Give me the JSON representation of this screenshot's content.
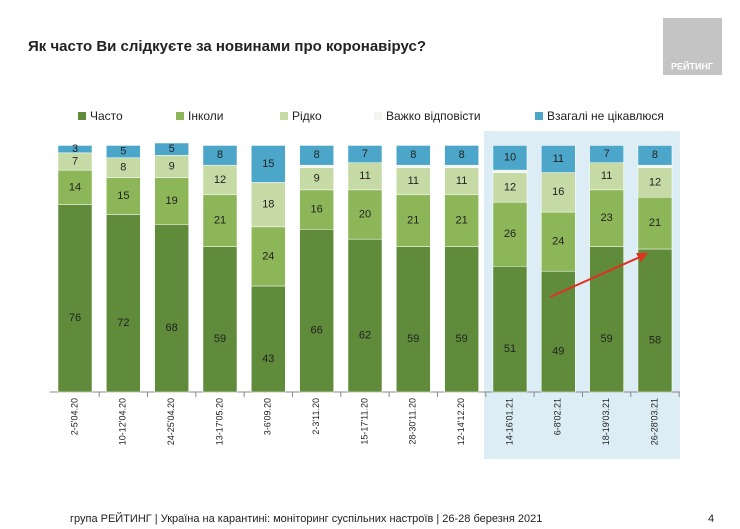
{
  "chart_data": {
    "type": "stacked-bar",
    "title": "Як часто Ви слідкуєте за новинами про коронавірус?",
    "logo": "РЕЙТИНГ",
    "footer": "група РЕЙТИНГ | Україна на карантині: моніторинг суспільних настроїв | 26-28 березня 2021",
    "page_number": "4",
    "categories": [
      "2-5'04.20",
      "10-12'04.20",
      "24-25'04.20",
      "13-17'05.20",
      "3-6'09.20",
      "2-3'11.20",
      "15-17'11.20",
      "28-30'11.20",
      "12-14'12.20",
      "14-16'01.21",
      "6-8'02.21",
      "18-19'03.21",
      "26-28'03.21"
    ],
    "series": [
      {
        "name": "Часто",
        "color": "#5f8b3b",
        "values": [
          76,
          72,
          68,
          59,
          43,
          66,
          62,
          59,
          59,
          51,
          49,
          59,
          58
        ]
      },
      {
        "name": "Інколи",
        "color": "#8db659",
        "values": [
          14,
          15,
          19,
          21,
          24,
          16,
          20,
          21,
          21,
          26,
          24,
          23,
          21
        ]
      },
      {
        "name": "Рідко",
        "color": "#c6daa6",
        "values": [
          7,
          8,
          9,
          12,
          18,
          9,
          11,
          11,
          11,
          12,
          16,
          11,
          12
        ]
      },
      {
        "name": "Важко відповісти",
        "color": "#f3f4f0",
        "labels": false,
        "values": [
          0,
          0,
          0,
          0,
          0,
          1,
          0,
          1,
          1,
          1,
          0,
          0,
          1
        ]
      },
      {
        "name": "Взагалі не цікавлюся",
        "color": "#4ba6c9",
        "values": [
          3,
          5,
          5,
          8,
          15,
          8,
          7,
          8,
          8,
          10,
          11,
          7,
          8
        ]
      }
    ]
  }
}
